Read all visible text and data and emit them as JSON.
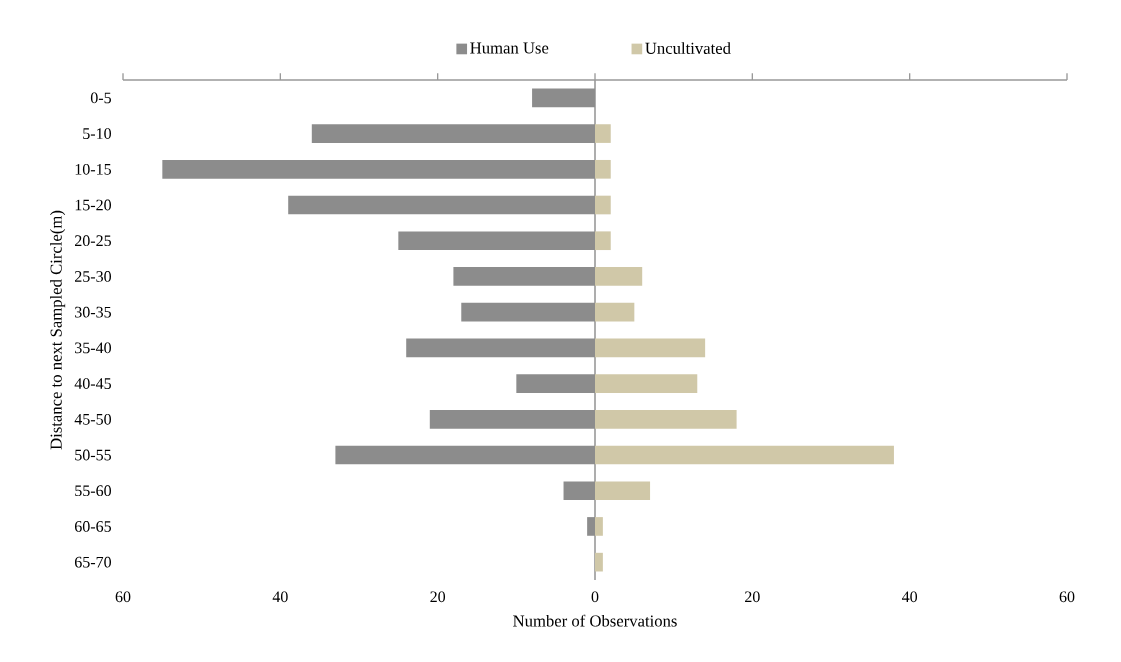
{
  "chart_data": {
    "type": "bar",
    "orientation": "horizontal",
    "xlabel": "Number of Observations",
    "ylabel": "Distance to next Sampled Circle(m)",
    "categories": [
      "0-5",
      "5-10",
      "10-15",
      "15-20",
      "20-25",
      "25-30",
      "30-35",
      "35-40",
      "40-45",
      "45-50",
      "50-55",
      "55-60",
      "60-65",
      "65-70"
    ],
    "series": [
      {
        "name": "Human Use",
        "color": "#8c8c8c",
        "values": [
          -8,
          -36,
          -55,
          -39,
          -25,
          -18,
          -17,
          -24,
          -10,
          -21,
          -33,
          -4,
          -1,
          0
        ]
      },
      {
        "name": "Uncultivated",
        "color": "#d0c8a8",
        "values": [
          0,
          2,
          2,
          2,
          2,
          6,
          5,
          14,
          13,
          18,
          38,
          7,
          1,
          1
        ]
      }
    ],
    "xlim": [
      -60,
      60
    ],
    "xticks": [
      {
        "value": -60,
        "label": "60"
      },
      {
        "value": -40,
        "label": "40"
      },
      {
        "value": -20,
        "label": "20"
      },
      0,
      20,
      40,
      60
    ],
    "stacked": true,
    "legend": "top"
  }
}
